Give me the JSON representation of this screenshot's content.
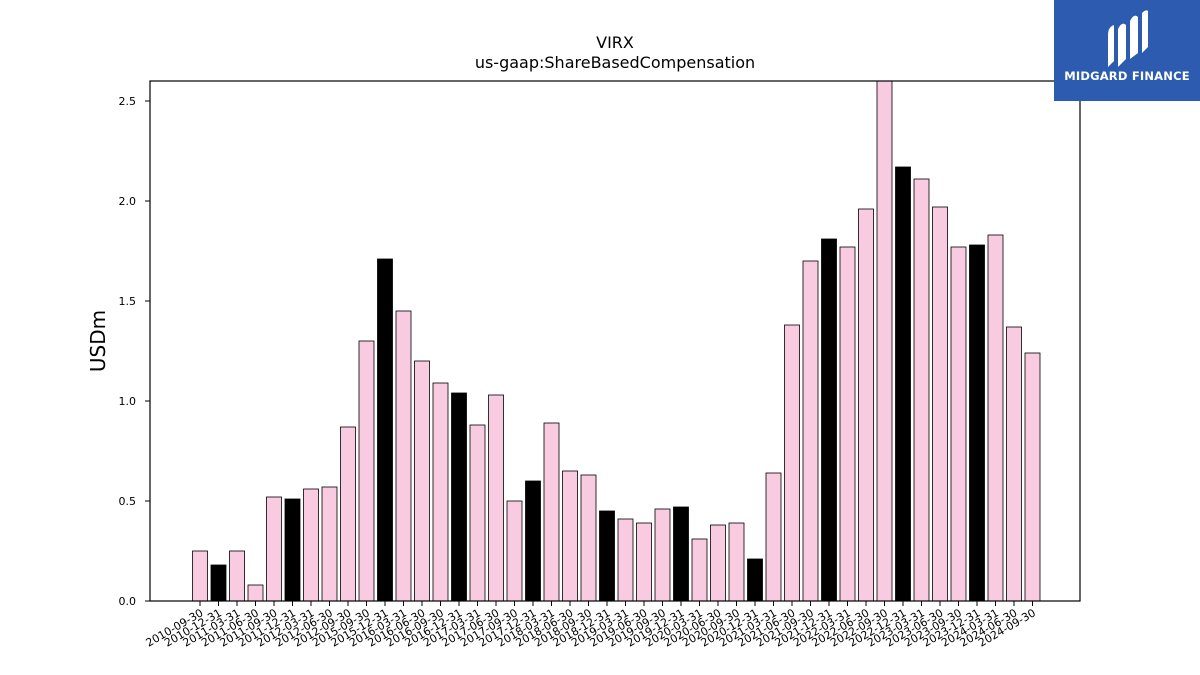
{
  "chart_data": {
    "type": "bar",
    "title": "VIRX",
    "subtitle": "us-gaap:ShareBasedCompensation",
    "xlabel": "",
    "ylabel": "USDm",
    "ylim": [
      0,
      2.6
    ],
    "yticks": [
      0.0,
      0.5,
      1.0,
      1.5,
      2.0,
      2.5
    ],
    "ytick_labels": [
      "0.0",
      "0.5",
      "1.0",
      "1.5",
      "2.0",
      "2.5"
    ],
    "grid": false,
    "categories": [
      "2010-09-30",
      "2010-12-31",
      "2011-03-31",
      "2011-06-30",
      "2011-09-30",
      "2011-12-31",
      "2012-03-31",
      "2012-06-30",
      "2012-09-30",
      "2015-09-30",
      "2015-12-31",
      "2016-03-31",
      "2016-06-30",
      "2016-09-30",
      "2016-12-31",
      "2017-03-31",
      "2017-06-30",
      "2017-09-30",
      "2017-12-31",
      "2018-03-31",
      "2018-06-30",
      "2018-09-30",
      "2018-12-31",
      "2019-03-31",
      "2019-06-30",
      "2019-09-30",
      "2019-12-31",
      "2020-03-31",
      "2020-06-30",
      "2020-09-30",
      "2020-12-31",
      "2021-03-31",
      "2021-06-30",
      "2021-09-30",
      "2021-12-31",
      "2022-03-31",
      "2022-06-30",
      "2022-09-30",
      "2022-12-31",
      "2023-03-31",
      "2023-06-30",
      "2023-09-30",
      "2023-12-31",
      "2024-03-31",
      "2024-06-30",
      "2024-09-30"
    ],
    "values": [
      0.25,
      0.18,
      0.25,
      0.08,
      0.52,
      0.51,
      0.56,
      0.57,
      0.87,
      1.3,
      1.71,
      1.45,
      1.2,
      1.09,
      1.04,
      0.88,
      1.03,
      0.5,
      0.6,
      0.89,
      0.65,
      0.63,
      0.45,
      0.41,
      0.39,
      0.46,
      0.47,
      0.31,
      0.38,
      0.39,
      0.21,
      0.64,
      1.38,
      1.7,
      1.81,
      1.77,
      1.96,
      2.6,
      2.17,
      2.11,
      1.97,
      1.77,
      1.78,
      1.83,
      1.37,
      1.24
    ],
    "year_end": [
      false,
      true,
      false,
      false,
      false,
      true,
      false,
      false,
      false,
      false,
      true,
      false,
      false,
      false,
      true,
      false,
      false,
      false,
      true,
      false,
      false,
      false,
      true,
      false,
      false,
      false,
      true,
      false,
      false,
      false,
      true,
      false,
      false,
      false,
      true,
      false,
      false,
      false,
      true,
      false,
      false,
      false,
      true,
      false,
      false,
      false
    ],
    "colors": {
      "quarter": "#f8cbe0",
      "year_end": "#000000",
      "edge": "#000000"
    }
  },
  "logo": {
    "text": "MIDGARD FINANCE",
    "background": "#2d5bb0"
  }
}
